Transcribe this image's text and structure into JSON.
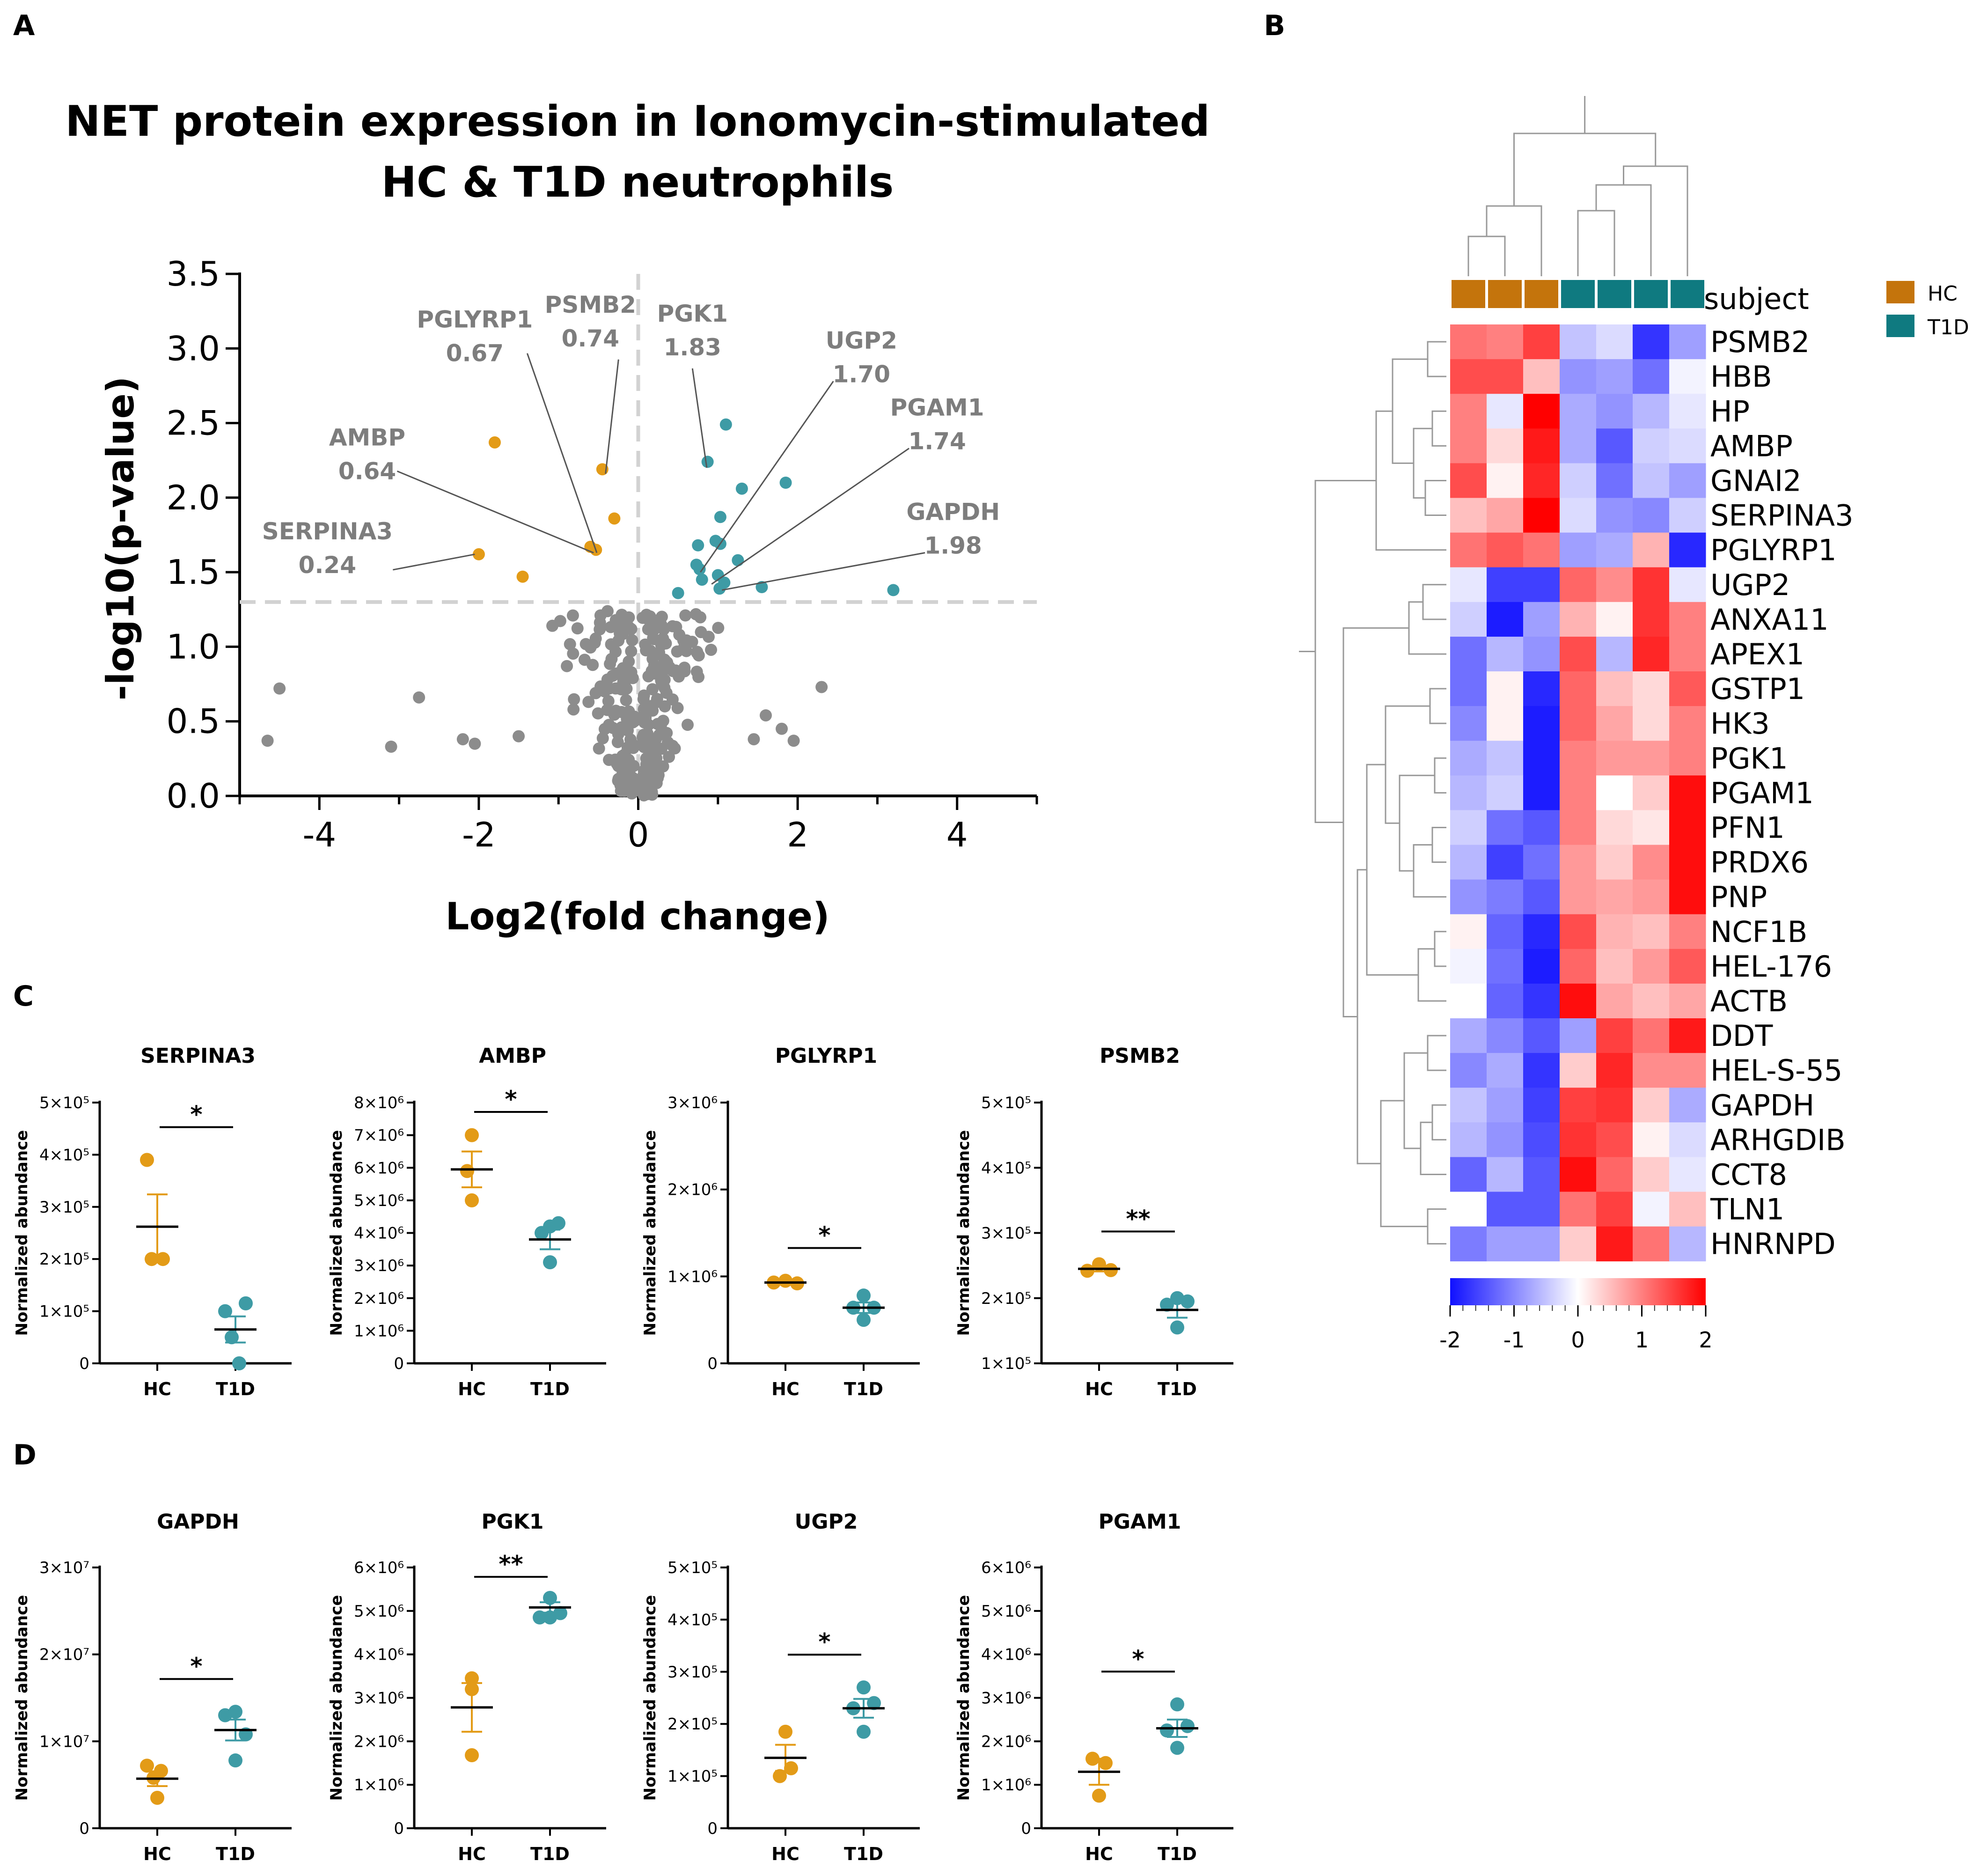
{
  "panels": {
    "a": "A",
    "b": "B",
    "c": "C",
    "d": "D"
  },
  "colors": {
    "hc": "#e39b17",
    "t1d": "#3e9ba5",
    "ns": "#8c8c8c",
    "annot": "#7d7d7d",
    "hc_bar": "#c4740c",
    "t1d_bar": "#0f7a80",
    "low": "#1010ff",
    "mid": "#ffffff",
    "high": "#ff0000"
  },
  "chart_data": [
    {
      "id": "volcano",
      "type": "scatter",
      "title": [
        "NET protein expression in Ionomycin-stimulated",
        "HC & T1D neutrophils"
      ],
      "xlabel": "Log2(fold change)",
      "ylabel": "-log10(p-value)",
      "xlim": [
        -5,
        5
      ],
      "ylim": [
        0,
        3.5
      ],
      "xticks": [
        -4,
        -2,
        0,
        2,
        4
      ],
      "xtick_labels": [
        "-4",
        "-2",
        "0",
        "2",
        "4"
      ],
      "yticks": [
        0,
        0.5,
        1,
        1.5,
        2,
        2.5,
        3,
        3.5
      ],
      "ytick_labels": [
        "0.0",
        "0.5",
        "1.0",
        "1.5",
        "2.0",
        "2.5",
        "3.0",
        "3.5"
      ],
      "thresholds": {
        "y": 1.3,
        "x": 0
      },
      "down_points": [
        [
          -1.8,
          2.37
        ],
        [
          -0.45,
          2.19
        ],
        [
          -0.3,
          1.86
        ],
        [
          -0.6,
          1.67
        ],
        [
          -0.53,
          1.65
        ],
        [
          -2.0,
          1.62
        ],
        [
          -1.45,
          1.47
        ]
      ],
      "up_points": [
        [
          1.1,
          2.49
        ],
        [
          0.87,
          2.24
        ],
        [
          1.85,
          2.1
        ],
        [
          1.3,
          2.06
        ],
        [
          1.03,
          1.87
        ],
        [
          0.97,
          1.71
        ],
        [
          1.03,
          1.69
        ],
        [
          0.75,
          1.68
        ],
        [
          0.73,
          1.55
        ],
        [
          1.25,
          1.58
        ],
        [
          0.77,
          1.52
        ],
        [
          1.0,
          1.48
        ],
        [
          0.8,
          1.45
        ],
        [
          1.08,
          1.43
        ],
        [
          1.02,
          1.39
        ],
        [
          1.55,
          1.4
        ],
        [
          0.5,
          1.36
        ],
        [
          3.2,
          1.38
        ]
      ],
      "annotations": [
        {
          "name": "SERPINA3",
          "value": "0.24",
          "tx": -3.9,
          "ty": 1.72,
          "px": -2.05,
          "py": 1.62
        },
        {
          "name": "AMBP",
          "value": "0.64",
          "tx": -3.4,
          "ty": 2.35,
          "px": -0.56,
          "py": 1.63
        },
        {
          "name": "PGLYRP1",
          "value": "0.67",
          "tx": -2.05,
          "ty": 3.14,
          "px": -0.52,
          "py": 1.63
        },
        {
          "name": "PSMB2",
          "value": "0.74",
          "tx": -0.6,
          "ty": 3.24,
          "px": -0.41,
          "py": 2.16
        },
        {
          "name": "PGK1",
          "value": "1.83",
          "tx": 0.68,
          "ty": 3.18,
          "px": 0.86,
          "py": 2.2
        },
        {
          "name": "UGP2",
          "value": "1.70",
          "tx": 2.8,
          "ty": 3.0,
          "px": 0.78,
          "py": 1.5
        },
        {
          "name": "PGAM1",
          "value": "1.74",
          "tx": 3.75,
          "ty": 2.55,
          "px": 0.92,
          "py": 1.42
        },
        {
          "name": "GAPDH",
          "value": "1.98",
          "tx": 3.95,
          "ty": 1.85,
          "px": 1.05,
          "py": 1.38
        }
      ]
    },
    {
      "id": "heatmap",
      "type": "heatmap",
      "annotation_label": "subject",
      "legend": [
        "HC",
        "T1D"
      ],
      "column_groups": [
        "HC",
        "HC",
        "HC",
        "T1D",
        "T1D",
        "T1D",
        "T1D"
      ],
      "rows": [
        "PSMB2",
        "HBB",
        "HP",
        "AMBP",
        "GNAI2",
        "SERPINA3",
        "PGLYRP1",
        "UGP2",
        "ANXA11",
        "APEX1",
        "GSTP1",
        "HK3",
        "PGK1",
        "PGAM1",
        "PFN1",
        "PRDX6",
        "PNP",
        "NCF1B",
        "HEL-176",
        "ACTB",
        "DDT",
        "HEL-S-55",
        "GAPDH",
        "ARHGDIB",
        "CCT8",
        "TLN1",
        "HNRNPD"
      ],
      "values": [
        [
          1.1,
          1.0,
          1.5,
          -0.5,
          -0.3,
          -1.7,
          -0.8
        ],
        [
          1.4,
          1.4,
          0.5,
          -0.9,
          -0.8,
          -1.2,
          -0.1
        ],
        [
          1.0,
          -0.2,
          2.0,
          -0.7,
          -0.9,
          -0.6,
          -0.2
        ],
        [
          1.0,
          0.3,
          1.8,
          -0.7,
          -1.4,
          -0.4,
          -0.3
        ],
        [
          1.4,
          0.1,
          1.7,
          -0.4,
          -1.2,
          -0.5,
          -0.8
        ],
        [
          0.5,
          0.7,
          2.0,
          -0.3,
          -0.9,
          -1.0,
          -0.4
        ],
        [
          1.1,
          1.3,
          1.1,
          -0.8,
          -0.7,
          0.6,
          -1.8
        ],
        [
          -0.2,
          -1.6,
          -1.6,
          1.2,
          0.9,
          1.6,
          -0.2
        ],
        [
          -0.4,
          -1.9,
          -0.8,
          0.6,
          0.1,
          1.6,
          1.0
        ],
        [
          -1.2,
          -0.6,
          -0.9,
          1.4,
          -0.6,
          1.7,
          1.0
        ],
        [
          -1.2,
          0.1,
          -1.8,
          1.2,
          0.5,
          0.3,
          1.3
        ],
        [
          -1.0,
          0.1,
          -1.9,
          1.2,
          0.7,
          0.3,
          1.0
        ],
        [
          -0.7,
          -0.5,
          -1.9,
          1.0,
          0.8,
          0.8,
          1.0
        ],
        [
          -0.6,
          -0.4,
          -1.9,
          1.0,
          0.0,
          0.4,
          1.9
        ],
        [
          -0.4,
          -1.2,
          -1.4,
          1.0,
          0.3,
          0.2,
          1.9
        ],
        [
          -0.6,
          -1.6,
          -1.2,
          0.8,
          0.4,
          0.9,
          1.9
        ],
        [
          -0.9,
          -1.1,
          -1.4,
          0.8,
          0.7,
          0.8,
          1.9
        ],
        [
          0.1,
          -1.3,
          -1.8,
          1.4,
          0.6,
          0.5,
          1.0
        ],
        [
          -0.1,
          -1.2,
          -1.9,
          1.2,
          0.5,
          0.8,
          1.3
        ],
        [
          0.0,
          -1.3,
          -1.7,
          1.9,
          0.7,
          0.5,
          0.7
        ],
        [
          -0.7,
          -1.0,
          -1.4,
          -0.8,
          1.5,
          1.1,
          1.8
        ],
        [
          -1.0,
          -0.7,
          -1.7,
          0.4,
          1.7,
          0.9,
          0.9
        ],
        [
          -0.5,
          -0.8,
          -1.6,
          1.5,
          1.6,
          0.4,
          -0.7
        ],
        [
          -0.6,
          -0.9,
          -1.5,
          1.6,
          1.4,
          0.1,
          -0.3
        ],
        [
          -1.3,
          -0.6,
          -1.4,
          1.9,
          1.2,
          0.4,
          -0.2
        ],
        [
          0.0,
          -1.4,
          -1.4,
          1.1,
          1.5,
          -0.1,
          0.5
        ],
        [
          -1.1,
          -0.8,
          -0.8,
          0.4,
          1.8,
          1.1,
          -0.6
        ]
      ],
      "colorbar": {
        "min": -2,
        "max": 2,
        "ticks": [
          -2,
          -1,
          0,
          1,
          2
        ],
        "tick_labels": [
          "-2",
          "-1",
          "0",
          "1",
          "2"
        ]
      }
    },
    {
      "id": "dotplots_c",
      "type": "scatter",
      "row": "C",
      "ylabel": "Normalized abundance",
      "groups": [
        "HC",
        "T1D"
      ],
      "plots": [
        {
          "title": "SERPINA3",
          "ymin": 0,
          "ymax": 500000,
          "yticks": [
            0,
            100000,
            200000,
            300000,
            400000,
            500000
          ],
          "ytick_labels": [
            "0",
            "1×10⁵",
            "2×10⁵",
            "3×10⁵",
            "4×10⁵",
            "5×10⁵"
          ],
          "hc": [
            [
              -22,
              390000
            ],
            [
              -12,
              200000
            ],
            [
              12,
              200000
            ]
          ],
          "t1d": [
            [
              -22,
              100000
            ],
            [
              -8,
              50000
            ],
            [
              8,
              0
            ],
            [
              22,
              115000
            ]
          ],
          "hc_mean": 262000,
          "hc_sem": 62000,
          "t1d_mean": 65000,
          "t1d_sem": 25000,
          "sig": "*"
        },
        {
          "title": "AMBP",
          "ymin": 0,
          "ymax": 8000000,
          "yticks": [
            0,
            1000000,
            2000000,
            3000000,
            4000000,
            5000000,
            6000000,
            7000000,
            8000000
          ],
          "ytick_labels": [
            "0",
            "1×10⁶",
            "2×10⁶",
            "3×10⁶",
            "4×10⁶",
            "5×10⁶",
            "6×10⁶",
            "7×10⁶",
            "8×10⁶"
          ],
          "hc": [
            [
              0,
              7000000
            ],
            [
              -10,
              5900000
            ],
            [
              0,
              5000000
            ]
          ],
          "t1d": [
            [
              -18,
              4000000
            ],
            [
              0,
              4200000
            ],
            [
              18,
              4300000
            ],
            [
              0,
              3100000
            ]
          ],
          "hc_mean": 5950000,
          "hc_sem": 550000,
          "t1d_mean": 3800000,
          "t1d_sem": 300000,
          "sig": "*"
        },
        {
          "title": "PGLYRP1",
          "ymin": 0,
          "ymax": 3000000,
          "yticks": [
            0,
            1000000,
            2000000,
            3000000
          ],
          "ytick_labels": [
            "0",
            "1×10⁶",
            "2×10⁶",
            "3×10⁶"
          ],
          "hc": [
            [
              -25,
              930000
            ],
            [
              0,
              950000
            ],
            [
              25,
              920000
            ]
          ],
          "t1d": [
            [
              -22,
              640000
            ],
            [
              0,
              780000
            ],
            [
              22,
              640000
            ],
            [
              0,
              500000
            ]
          ],
          "hc_mean": 930000,
          "hc_sem": 15000,
          "t1d_mean": 640000,
          "t1d_sem": 60000,
          "sig": "*"
        },
        {
          "title": "PSMB2",
          "ymin": 100000,
          "ymax": 500000,
          "yticks": [
            100000,
            200000,
            300000,
            400000,
            500000
          ],
          "ytick_labels": [
            "1×10⁵",
            "2×10⁵",
            "3×10⁵",
            "4×10⁵",
            "5×10⁵"
          ],
          "hc": [
            [
              -25,
              242000
            ],
            [
              0,
              252000
            ],
            [
              25,
              243000
            ]
          ],
          "t1d": [
            [
              -22,
              190000
            ],
            [
              0,
              200000
            ],
            [
              22,
              195000
            ],
            [
              0,
              155000
            ]
          ],
          "hc_mean": 245000,
          "hc_sem": 4000,
          "t1d_mean": 182000,
          "t1d_sem": 12000,
          "sig": "**"
        }
      ]
    },
    {
      "id": "dotplots_d",
      "type": "scatter",
      "row": "D",
      "ylabel": "Normalized abundance",
      "groups": [
        "HC",
        "T1D"
      ],
      "plots": [
        {
          "title": "GAPDH",
          "ymin": 0,
          "ymax": 30000000,
          "yticks": [
            0,
            10000000,
            20000000,
            30000000
          ],
          "ytick_labels": [
            "0",
            "1×10⁷",
            "2×10⁷",
            "3×10⁷"
          ],
          "hc": [
            [
              -22,
              7200000
            ],
            [
              -8,
              5800000
            ],
            [
              8,
              6600000
            ],
            [
              0,
              3500000
            ]
          ],
          "t1d": [
            [
              -22,
              13000000
            ],
            [
              0,
              13400000
            ],
            [
              22,
              10800000
            ],
            [
              0,
              7800000
            ]
          ],
          "hc_mean": 5700000,
          "hc_sem": 850000,
          "t1d_mean": 11300000,
          "t1d_sem": 1200000,
          "sig": "*"
        },
        {
          "title": "PGK1",
          "ymin": 0,
          "ymax": 6000000,
          "yticks": [
            0,
            1000000,
            2000000,
            3000000,
            4000000,
            5000000,
            6000000
          ],
          "ytick_labels": [
            "0",
            "1×10⁶",
            "2×10⁶",
            "3×10⁶",
            "4×10⁶",
            "5×10⁶",
            "6×10⁶"
          ],
          "hc": [
            [
              0,
              3450000
            ],
            [
              0,
              3200000
            ],
            [
              0,
              1680000
            ]
          ],
          "t1d": [
            [
              -22,
              4850000
            ],
            [
              0,
              5300000
            ],
            [
              22,
              4950000
            ],
            [
              0,
              4850000
            ]
          ],
          "hc_mean": 2780000,
          "hc_sem": 560000,
          "t1d_mean": 5080000,
          "t1d_sem": 120000,
          "sig": "**"
        },
        {
          "title": "UGP2",
          "ymin": 0,
          "ymax": 500000,
          "yticks": [
            0,
            100000,
            200000,
            300000,
            400000,
            500000
          ],
          "ytick_labels": [
            "0",
            "1×10⁵",
            "2×10⁵",
            "3×10⁵",
            "4×10⁵",
            "5×10⁵"
          ],
          "hc": [
            [
              0,
              185000
            ],
            [
              -12,
              100000
            ],
            [
              12,
              115000
            ]
          ],
          "t1d": [
            [
              0,
              270000
            ],
            [
              -22,
              230000
            ],
            [
              22,
              240000
            ],
            [
              0,
              185000
            ]
          ],
          "hc_mean": 135000,
          "hc_sem": 25000,
          "t1d_mean": 230000,
          "t1d_sem": 18000,
          "sig": "*"
        },
        {
          "title": "PGAM1",
          "ymin": 0,
          "ymax": 6000000,
          "yticks": [
            0,
            1000000,
            2000000,
            3000000,
            4000000,
            5000000,
            6000000
          ],
          "ytick_labels": [
            "0",
            "1×10⁶",
            "2×10⁶",
            "3×10⁶",
            "4×10⁶",
            "5×10⁶",
            "6×10⁶"
          ],
          "hc": [
            [
              -14,
              1600000
            ],
            [
              14,
              1500000
            ],
            [
              0,
              750000
            ]
          ],
          "t1d": [
            [
              0,
              2850000
            ],
            [
              -22,
              2250000
            ],
            [
              22,
              2350000
            ],
            [
              0,
              1850000
            ]
          ],
          "hc_mean": 1300000,
          "hc_sem": 300000,
          "t1d_mean": 2300000,
          "t1d_sem": 200000,
          "sig": "*"
        }
      ]
    }
  ]
}
